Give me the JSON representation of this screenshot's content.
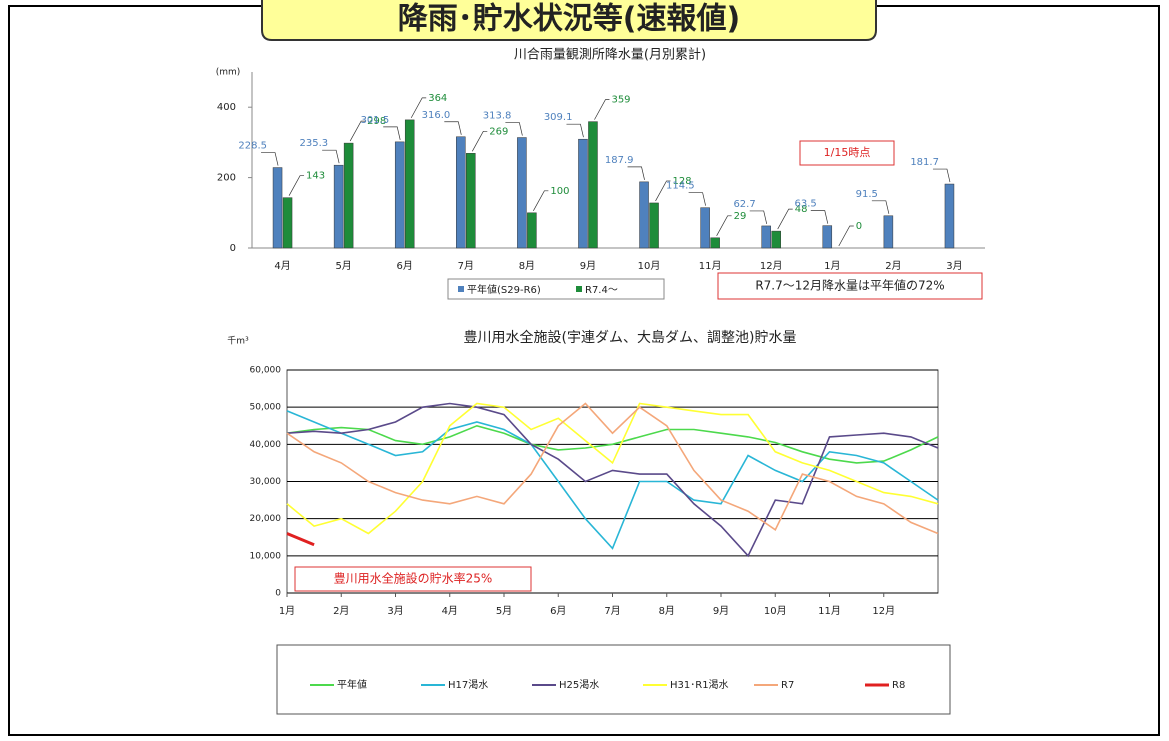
{
  "page_title": "降雨･貯水状況等(速報値)",
  "chart_data": [
    {
      "type": "bar",
      "title": "川合雨量観測所降水量(月別累計)",
      "ylabel": "(mm)",
      "categories": [
        "4月",
        "5月",
        "6月",
        "7月",
        "8月",
        "9月",
        "10月",
        "11月",
        "12月",
        "1月",
        "2月",
        "3月"
      ],
      "series": [
        {
          "name": "平年値(S29-R6)",
          "color": "#4f81bd",
          "values": [
            228.5,
            235.3,
            301.5,
            316.0,
            313.8,
            309.1,
            187.9,
            114.5,
            62.7,
            63.5,
            91.5,
            181.7
          ],
          "value_labels": [
            "228.5",
            "235.3",
            "301.5",
            "316.0",
            "313.8",
            "309.1",
            "187.9",
            "114.5",
            "62.7",
            "63.5",
            "91.5",
            "181.7"
          ]
        },
        {
          "name": "R7.4～",
          "color": "#1e8c3a",
          "values": [
            143,
            298,
            364,
            269,
            100,
            359,
            128,
            29,
            48,
            0,
            null,
            null
          ]
        }
      ],
      "ylim": [
        0,
        500
      ],
      "yticks": [
        0,
        200,
        400
      ],
      "annotations": [
        "1/15時点",
        "R7.7～12月降水量は平年値の72%"
      ]
    },
    {
      "type": "line",
      "title": "豊川用水全施設(宇連ダム、大島ダム、調整池)貯水量",
      "ylabel": "千m³",
      "x": [
        1,
        1.5,
        2,
        2.5,
        3,
        3.5,
        4,
        4.5,
        5,
        5.5,
        6,
        6.5,
        7,
        7.5,
        8,
        8.5,
        9,
        9.5,
        10,
        10.5,
        11,
        11.5,
        12,
        12.5,
        13
      ],
      "series": [
        {
          "name": "平年値",
          "color": "#4cd94c",
          "values": [
            43000,
            44000,
            44500,
            44000,
            41000,
            40000,
            42000,
            45000,
            43000,
            40000,
            38500,
            39000,
            40000,
            42000,
            44000,
            44000,
            43000,
            42000,
            40500,
            38000,
            36000,
            35000,
            35500,
            38500,
            42000
          ]
        },
        {
          "name": "H17渇水",
          "color": "#29b6d6",
          "values": [
            49000,
            46000,
            43000,
            40000,
            37000,
            38000,
            44000,
            46000,
            44000,
            40000,
            30000,
            20000,
            12000,
            30000,
            30000,
            25000,
            24000,
            37000,
            33000,
            30000,
            38000,
            37000,
            35000,
            30000,
            25000
          ]
        },
        {
          "name": "H25渇水",
          "color": "#5a4a8a",
          "values": [
            43000,
            43500,
            43000,
            44000,
            46000,
            50000,
            51000,
            50000,
            48000,
            40000,
            36000,
            30000,
            33000,
            32000,
            32000,
            24000,
            18000,
            10000,
            25000,
            24000,
            42000,
            42500,
            43000,
            42000,
            39000
          ]
        },
        {
          "name": "H31･R1渇水",
          "color": "#ffff33",
          "values": [
            24000,
            18000,
            20000,
            16000,
            22000,
            30000,
            45000,
            51000,
            50000,
            44000,
            47000,
            41000,
            35000,
            51000,
            50000,
            49000,
            48000,
            48000,
            38000,
            35000,
            33000,
            30000,
            27000,
            26000,
            24000
          ]
        },
        {
          "name": "R7",
          "color": "#f4a77a",
          "values": [
            43000,
            38000,
            35000,
            30000,
            27000,
            25000,
            24000,
            26000,
            24000,
            32000,
            45000,
            51000,
            43000,
            50000,
            45000,
            33000,
            25000,
            22000,
            17000,
            32000,
            30000,
            26000,
            24000,
            19000,
            16000
          ]
        },
        {
          "name": "R8",
          "color": "#e02020",
          "values": [
            16000,
            13000,
            null,
            null,
            null,
            null,
            null,
            null,
            null,
            null,
            null,
            null,
            null,
            null,
            null,
            null,
            null,
            null,
            null,
            null,
            null,
            null,
            null,
            null,
            null
          ]
        }
      ],
      "xlim": [
        1,
        13
      ],
      "xticks": [
        {
          "value": 1,
          "label": "1月"
        },
        {
          "value": 2,
          "label": "2月"
        },
        {
          "value": 3,
          "label": "3月"
        },
        {
          "value": 4,
          "label": "4月"
        },
        {
          "value": 5,
          "label": "5月"
        },
        {
          "value": 6,
          "label": "6月"
        },
        {
          "value": 7,
          "label": "7月"
        },
        {
          "value": 8,
          "label": "8月"
        },
        {
          "value": 9,
          "label": "9月"
        },
        {
          "value": 10,
          "label": "10月"
        },
        {
          "value": 11,
          "label": "11月"
        },
        {
          "value": 12,
          "label": "12月"
        }
      ],
      "ylim": [
        0,
        60000
      ],
      "yticks": [
        0,
        {
          "value": 10000,
          "label": "10,000"
        },
        {
          "value": 20000,
          "label": "20,000"
        },
        {
          "value": 30000,
          "label": "30,000"
        },
        {
          "value": 40000,
          "label": "40,000"
        },
        {
          "value": 50000,
          "label": "50,000"
        },
        {
          "value": 60000,
          "label": "60,000"
        }
      ],
      "grid": true,
      "annotations": [
        "豊川用水全施設の貯水率25%"
      ]
    }
  ]
}
